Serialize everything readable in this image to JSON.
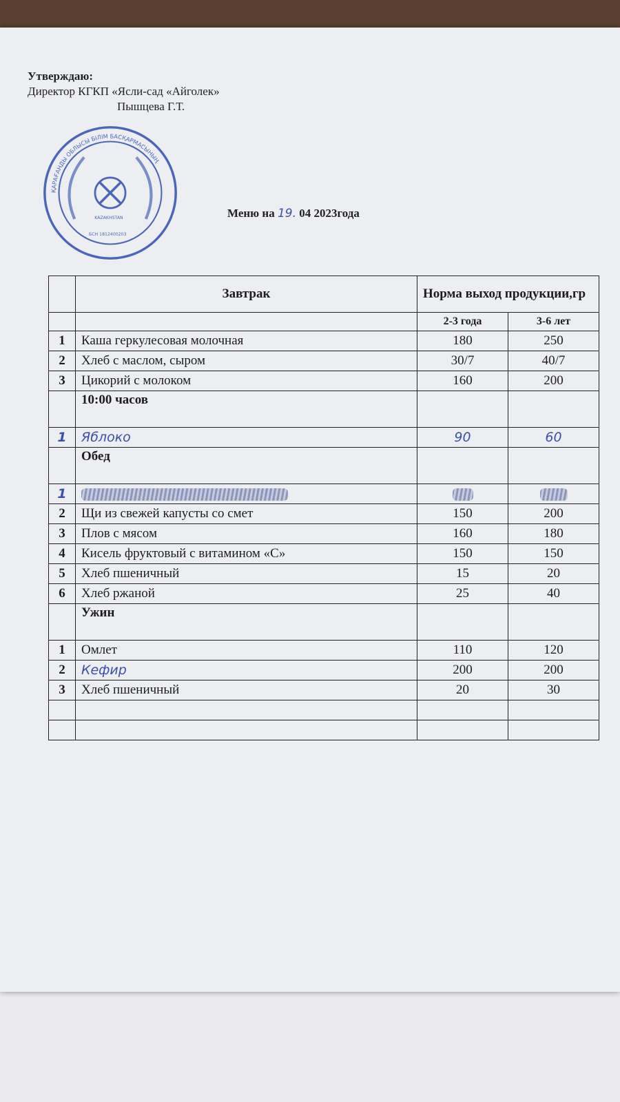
{
  "header": {
    "approve_label": "Утверждаю:",
    "director_line": "Директор КГКП «Ясли-сад «Айголек»",
    "signature_name": "Пышцева Г.Т.",
    "stamp_text": "ҚАРАҒАНДЫ ОБЛЫСЫ БІЛІМ БАСҚАРМАСЫНЫҢ КОММУНАЛДЫҚ МЕМЛЕКЕТТІК ҚАЗЫНАЛЫҚ КӘСІПОРНЫ «АЙГӨЛЕК» БӨБЕКЖАЙЫ · KAZAKHSTAN · БСН 1812400203"
  },
  "title": {
    "prefix": "Меню на",
    "day": "19.",
    "month": "04",
    "suffix": "2023года"
  },
  "table": {
    "col_meal": "Завтрак",
    "col_norm": "Норма выход продукции,гр",
    "col_age1": "2-3 года",
    "col_age2": "3-6 лет",
    "breakfast": [
      {
        "n": "1",
        "name": "Каша геркулесовая молочная",
        "a": "180",
        "b": "250"
      },
      {
        "n": "2",
        "name": "Хлеб с маслом, сыром",
        "a": "30/7",
        "b": "40/7"
      },
      {
        "n": "3",
        "name": "Цикорий с молоком",
        "a": "160",
        "b": "200"
      }
    ],
    "snack_title": "10:00 часов",
    "snack": [
      {
        "n": "1",
        "name": "Яблоко",
        "a": "90",
        "b": "60"
      }
    ],
    "lunch_title": "Обед",
    "lunch_crossed_n": "1",
    "lunch": [
      {
        "n": "2",
        "name": "Щи  из свежей капусты со смет",
        "a": "150",
        "b": "200"
      },
      {
        "n": "3",
        "name": "Плов с мясом",
        "a": "160",
        "b": "180"
      },
      {
        "n": "4",
        "name": "Кисель фруктовый с  витамином «С»",
        "a": "150",
        "b": "150"
      },
      {
        "n": "5",
        "name": "Хлеб пшеничный",
        "a": "15",
        "b": "20"
      },
      {
        "n": "6",
        "name": "Хлеб ржаной",
        "a": "25",
        "b": "40"
      }
    ],
    "dinner_title": "Ужин",
    "dinner": [
      {
        "n": "1",
        "name": "Омлет",
        "a": "110",
        "b": "120"
      },
      {
        "n": "2",
        "name": "Кефир",
        "a": "200",
        "b": "200"
      },
      {
        "n": "3",
        "name": "Хлеб пшеничный",
        "a": "20",
        "b": "30"
      }
    ]
  },
  "colors": {
    "stamp": "#2f4fb0",
    "ink": "#3a4fa8",
    "paper": "#eceef1"
  }
}
